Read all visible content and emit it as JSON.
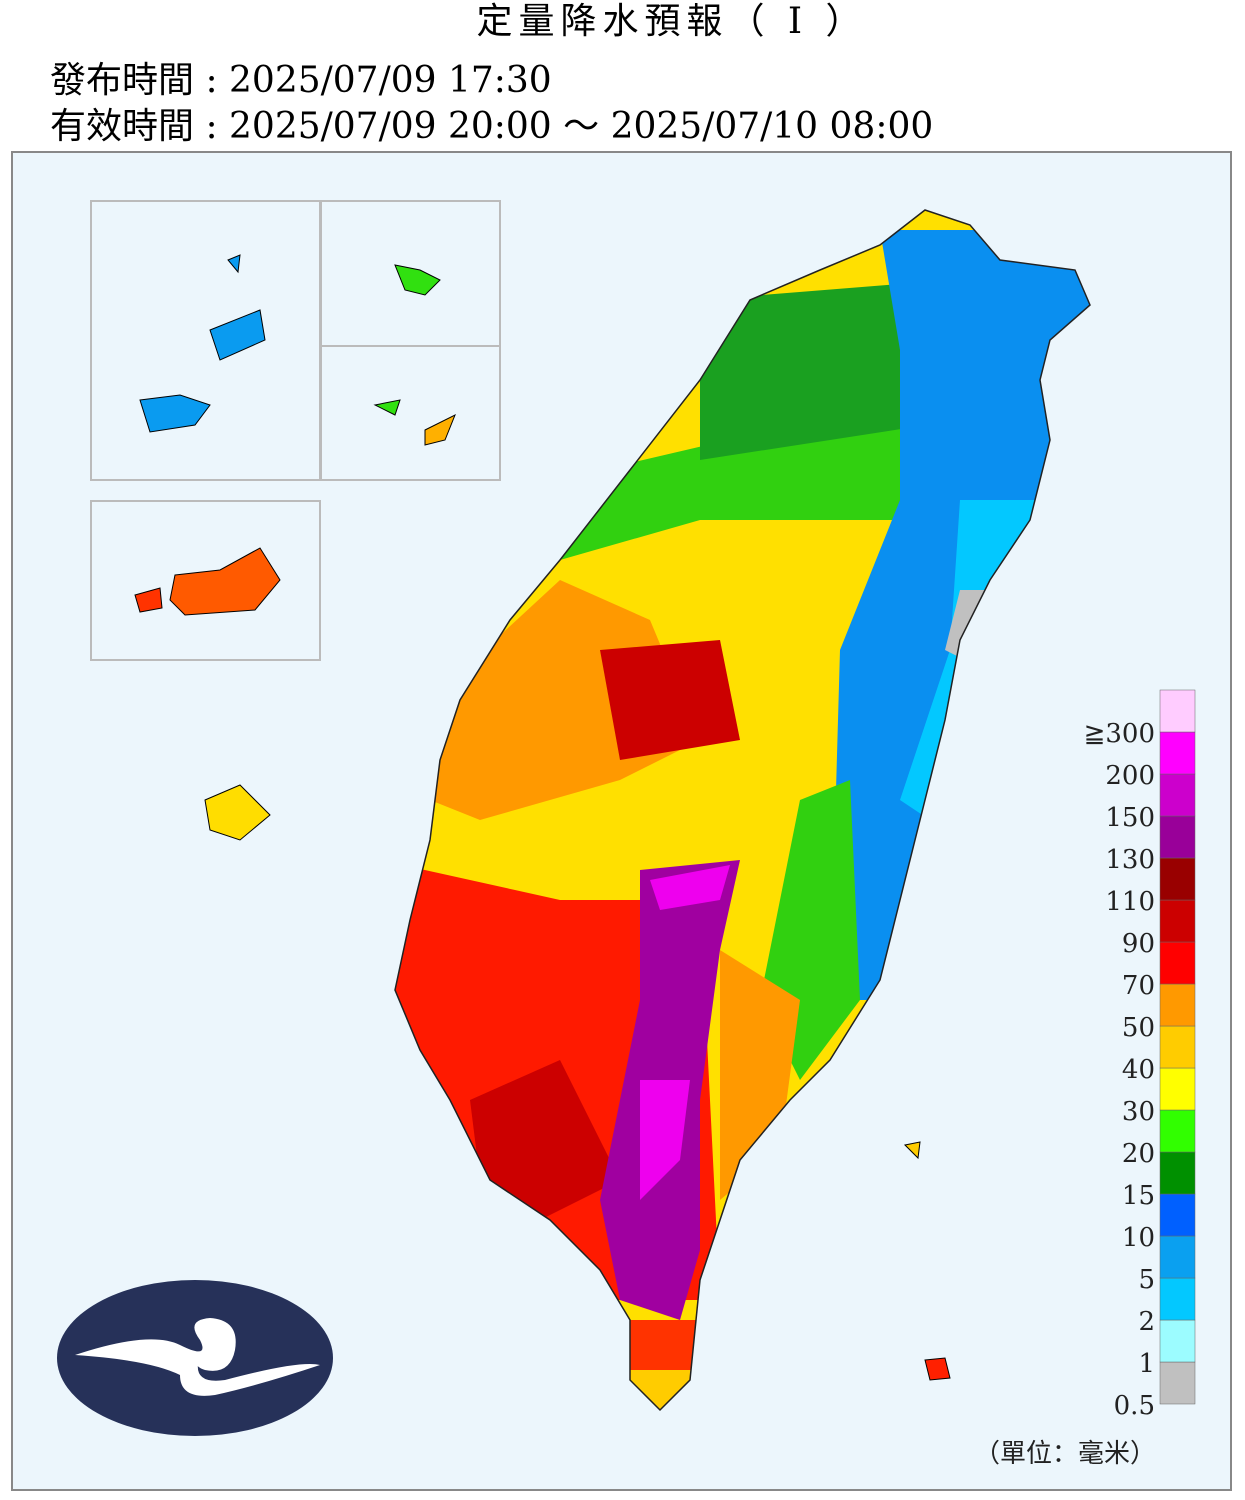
{
  "header": {
    "title": "定量降水預報（ I ）",
    "issued": "發布時間 : 2025/07/09 17:30",
    "valid": "有效時間 : 2025/07/09 20:00 ～ 2025/07/10 08:00"
  },
  "legend": {
    "ticks": [
      0.5,
      1,
      2,
      5,
      10,
      15,
      20,
      30,
      40,
      50,
      70,
      90,
      110,
      130,
      150,
      200,
      {
        "value": 300,
        "label": "≧300"
      }
    ],
    "colors": [
      "#c0c0c0",
      "#9cfcff",
      "#03c8ff",
      "#0aa0f0",
      "#0060ff",
      "#009000",
      "#31ff00",
      "#ffff00",
      "#ffcc00",
      "#ff9900",
      "#ff0000",
      "#cc0000",
      "#990000",
      "#990099",
      "#cc00cc",
      "#ff00ff",
      "#ffccff"
    ],
    "unit": "（單位：毫米）"
  }
}
